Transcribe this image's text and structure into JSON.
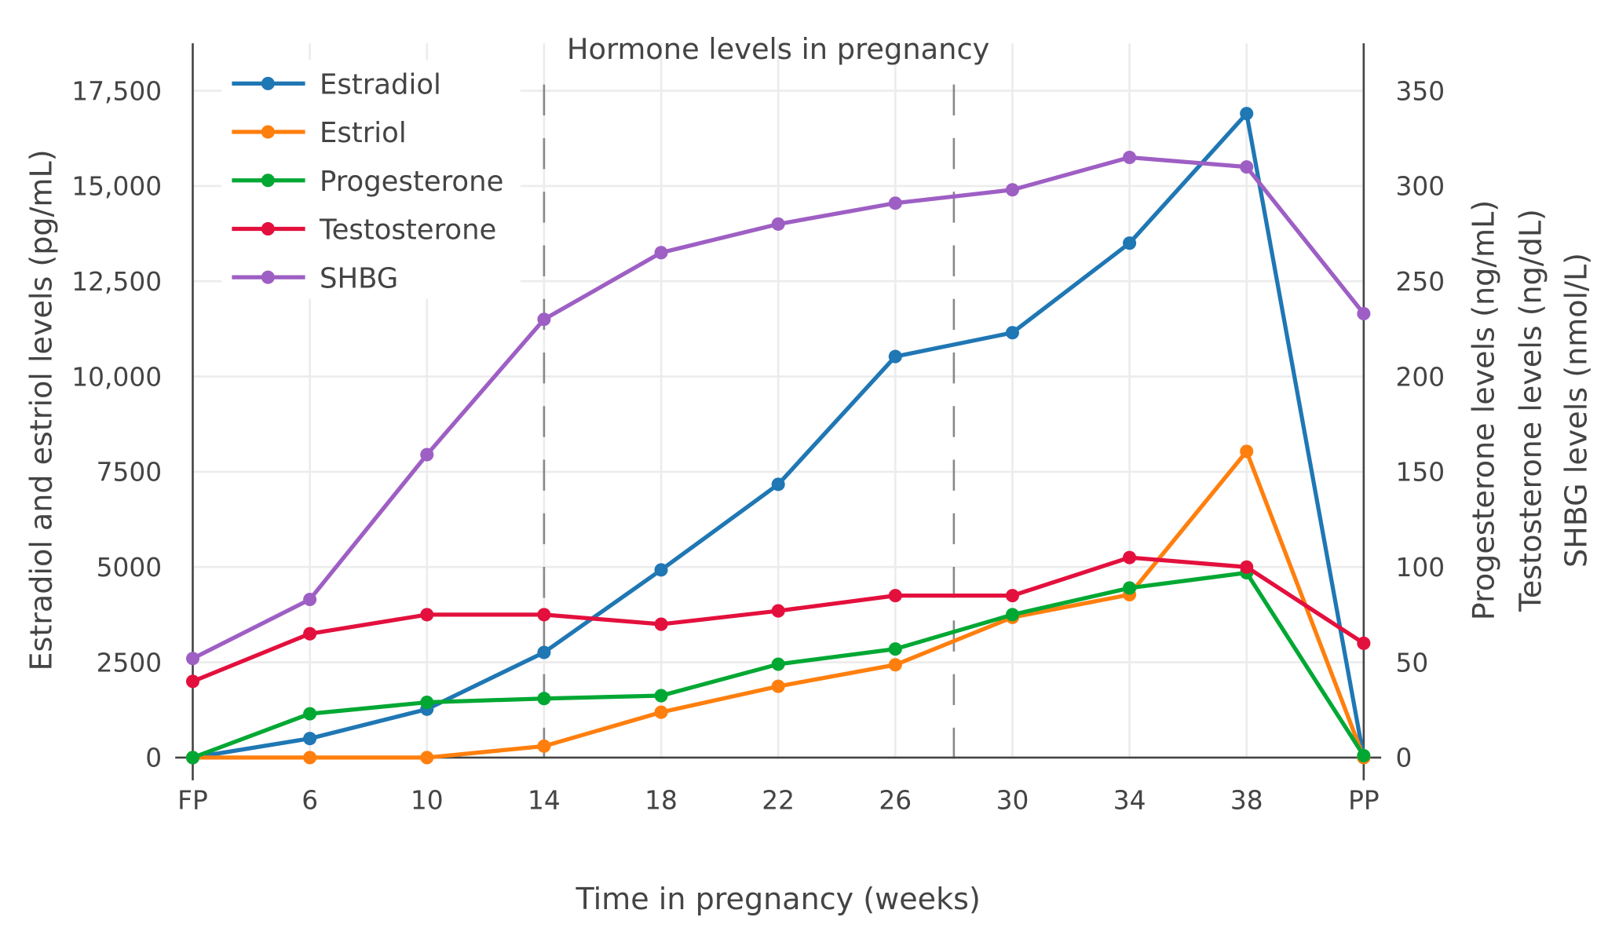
{
  "chart_data": {
    "type": "line",
    "title": "Hormone levels in pregnancy",
    "xlabel": "Time in pregnancy (weeks)",
    "ylabel_left": "Estradiol and estriol levels (pg/mL)",
    "ylabel_right": [
      "Progesterone levels (ng/mL)",
      "Testosterone levels (ng/dL)",
      "SHBG levels (nmol/L)"
    ],
    "categories": [
      "FP",
      "6",
      "10",
      "14",
      "18",
      "22",
      "26",
      "30",
      "34",
      "38",
      "PP"
    ],
    "ylim_left": [
      0,
      17500
    ],
    "yticks_left": [
      "0",
      "2500",
      "5000",
      "7500",
      "10,000",
      "12,500",
      "15,000",
      "17,500"
    ],
    "ylim_right": [
      0,
      350
    ],
    "yticks_right": [
      "0",
      "50",
      "100",
      "150",
      "200",
      "250",
      "300",
      "350"
    ],
    "grid": true,
    "legend_position": "top-left",
    "reference_lines_weeks": [
      14,
      28
    ],
    "series": [
      {
        "name": "Estradiol",
        "axis": "left",
        "color": "#1f77b4",
        "values": [
          0,
          500,
          1270,
          2760,
          4925,
          7170,
          10525,
          11150,
          13500,
          16900,
          0
        ]
      },
      {
        "name": "Estriol",
        "axis": "left",
        "color": "#ff7f0e",
        "values": [
          0,
          0,
          0,
          300,
          1190,
          1870,
          2435,
          3680,
          4275,
          8035,
          0
        ]
      },
      {
        "name": "Progesterone",
        "axis": "right",
        "color": "#00a833",
        "values": [
          0,
          23,
          29,
          31,
          32.5,
          49,
          57,
          75,
          89,
          97,
          1
        ]
      },
      {
        "name": "Testosterone",
        "axis": "right",
        "color": "#e3103d",
        "values": [
          40,
          65,
          75,
          75,
          70,
          77,
          85,
          85,
          105,
          100,
          60
        ]
      },
      {
        "name": "SHBG",
        "axis": "right",
        "color": "#9e5fc4",
        "values": [
          52,
          83,
          159,
          230,
          265,
          280,
          291,
          298,
          315,
          310,
          233
        ]
      }
    ]
  }
}
